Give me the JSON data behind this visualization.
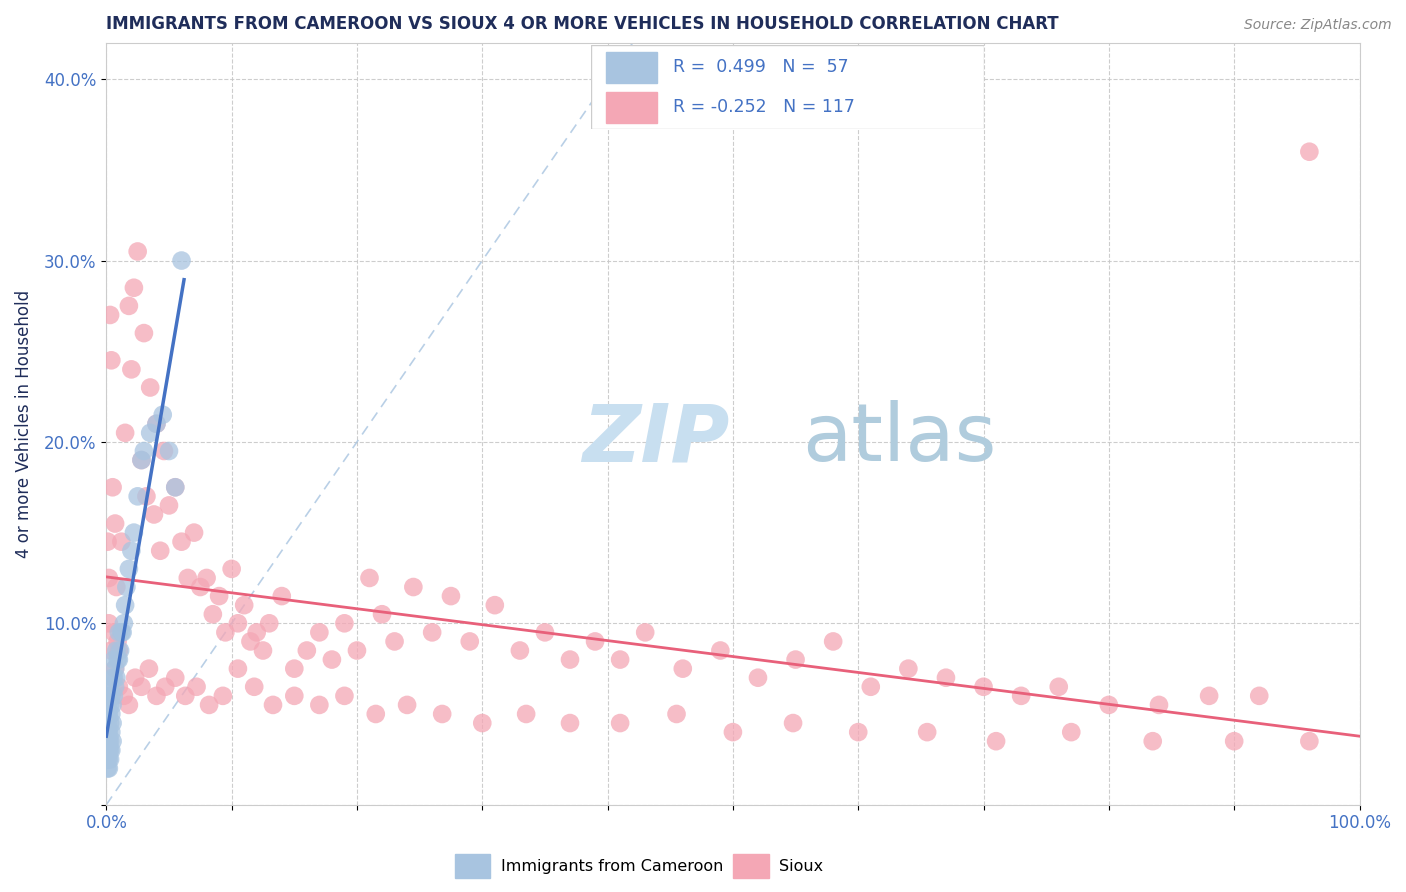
{
  "title": "IMMIGRANTS FROM CAMEROON VS SIOUX 4 OR MORE VEHICLES IN HOUSEHOLD CORRELATION CHART",
  "source_text": "Source: ZipAtlas.com",
  "ylabel": "4 or more Vehicles in Household",
  "xlim": [
    0.0,
    1.0
  ],
  "ylim": [
    0.0,
    0.42
  ],
  "xticklabels": [
    "0.0%",
    "",
    "",
    "",
    "",
    "",
    "",
    "",
    "",
    "",
    "100.0%"
  ],
  "yticklabels": [
    "",
    "10.0%",
    "20.0%",
    "30.0%",
    "40.0%"
  ],
  "color_blue": "#a8c4e0",
  "color_pink": "#f4a7b5",
  "line_color_blue": "#4472c4",
  "line_color_pink": "#e8607a",
  "dash_color": "#a8c4e0",
  "title_color": "#1f2d5a",
  "axis_label_color": "#1f2d5a",
  "tick_color": "#4472c4",
  "grid_color": "#c8c8c8",
  "watermark_zip_color": "#c8dff0",
  "watermark_atlas_color": "#b0ccdd",
  "figsize": [
    14.06,
    8.92
  ],
  "dpi": 100,
  "blue_scatter_x": [
    0.001,
    0.001,
    0.001,
    0.001,
    0.001,
    0.001,
    0.001,
    0.001,
    0.002,
    0.002,
    0.002,
    0.002,
    0.002,
    0.002,
    0.002,
    0.003,
    0.003,
    0.003,
    0.003,
    0.003,
    0.003,
    0.004,
    0.004,
    0.004,
    0.004,
    0.005,
    0.005,
    0.005,
    0.005,
    0.006,
    0.006,
    0.006,
    0.007,
    0.007,
    0.008,
    0.008,
    0.009,
    0.01,
    0.01,
    0.011,
    0.012,
    0.013,
    0.014,
    0.015,
    0.016,
    0.018,
    0.02,
    0.022,
    0.025,
    0.028,
    0.03,
    0.035,
    0.04,
    0.045,
    0.05,
    0.055,
    0.06
  ],
  "blue_scatter_y": [
    0.02,
    0.025,
    0.03,
    0.035,
    0.04,
    0.045,
    0.05,
    0.055,
    0.02,
    0.025,
    0.03,
    0.035,
    0.04,
    0.05,
    0.06,
    0.025,
    0.03,
    0.035,
    0.045,
    0.055,
    0.065,
    0.03,
    0.04,
    0.05,
    0.06,
    0.035,
    0.045,
    0.055,
    0.07,
    0.06,
    0.07,
    0.08,
    0.065,
    0.075,
    0.07,
    0.085,
    0.08,
    0.08,
    0.095,
    0.085,
    0.095,
    0.095,
    0.1,
    0.11,
    0.12,
    0.13,
    0.14,
    0.15,
    0.17,
    0.19,
    0.195,
    0.205,
    0.21,
    0.215,
    0.195,
    0.175,
    0.3
  ],
  "pink_scatter_x": [
    0.001,
    0.002,
    0.003,
    0.004,
    0.005,
    0.006,
    0.007,
    0.008,
    0.009,
    0.01,
    0.012,
    0.015,
    0.018,
    0.02,
    0.022,
    0.025,
    0.028,
    0.03,
    0.032,
    0.035,
    0.038,
    0.04,
    0.043,
    0.046,
    0.05,
    0.055,
    0.06,
    0.065,
    0.07,
    0.075,
    0.08,
    0.085,
    0.09,
    0.095,
    0.1,
    0.105,
    0.11,
    0.115,
    0.12,
    0.125,
    0.13,
    0.14,
    0.15,
    0.16,
    0.17,
    0.18,
    0.19,
    0.2,
    0.21,
    0.22,
    0.23,
    0.245,
    0.26,
    0.275,
    0.29,
    0.31,
    0.33,
    0.35,
    0.37,
    0.39,
    0.41,
    0.43,
    0.46,
    0.49,
    0.52,
    0.55,
    0.58,
    0.61,
    0.64,
    0.67,
    0.7,
    0.73,
    0.76,
    0.8,
    0.84,
    0.88,
    0.92,
    0.96,
    0.002,
    0.004,
    0.007,
    0.01,
    0.014,
    0.018,
    0.023,
    0.028,
    0.034,
    0.04,
    0.047,
    0.055,
    0.063,
    0.072,
    0.082,
    0.093,
    0.105,
    0.118,
    0.133,
    0.15,
    0.17,
    0.19,
    0.215,
    0.24,
    0.268,
    0.3,
    0.335,
    0.37,
    0.41,
    0.455,
    0.5,
    0.548,
    0.6,
    0.655,
    0.71,
    0.77,
    0.835,
    0.9,
    0.96
  ],
  "pink_scatter_y": [
    0.145,
    0.125,
    0.27,
    0.245,
    0.175,
    0.095,
    0.155,
    0.12,
    0.09,
    0.085,
    0.145,
    0.205,
    0.275,
    0.24,
    0.285,
    0.305,
    0.19,
    0.26,
    0.17,
    0.23,
    0.16,
    0.21,
    0.14,
    0.195,
    0.165,
    0.175,
    0.145,
    0.125,
    0.15,
    0.12,
    0.125,
    0.105,
    0.115,
    0.095,
    0.13,
    0.1,
    0.11,
    0.09,
    0.095,
    0.085,
    0.1,
    0.115,
    0.075,
    0.085,
    0.095,
    0.08,
    0.1,
    0.085,
    0.125,
    0.105,
    0.09,
    0.12,
    0.095,
    0.115,
    0.09,
    0.11,
    0.085,
    0.095,
    0.08,
    0.09,
    0.08,
    0.095,
    0.075,
    0.085,
    0.07,
    0.08,
    0.09,
    0.065,
    0.075,
    0.07,
    0.065,
    0.06,
    0.065,
    0.055,
    0.055,
    0.06,
    0.06,
    0.36,
    0.1,
    0.085,
    0.075,
    0.065,
    0.06,
    0.055,
    0.07,
    0.065,
    0.075,
    0.06,
    0.065,
    0.07,
    0.06,
    0.065,
    0.055,
    0.06,
    0.075,
    0.065,
    0.055,
    0.06,
    0.055,
    0.06,
    0.05,
    0.055,
    0.05,
    0.045,
    0.05,
    0.045,
    0.045,
    0.05,
    0.04,
    0.045,
    0.04,
    0.04,
    0.035,
    0.04,
    0.035,
    0.035,
    0.035
  ]
}
